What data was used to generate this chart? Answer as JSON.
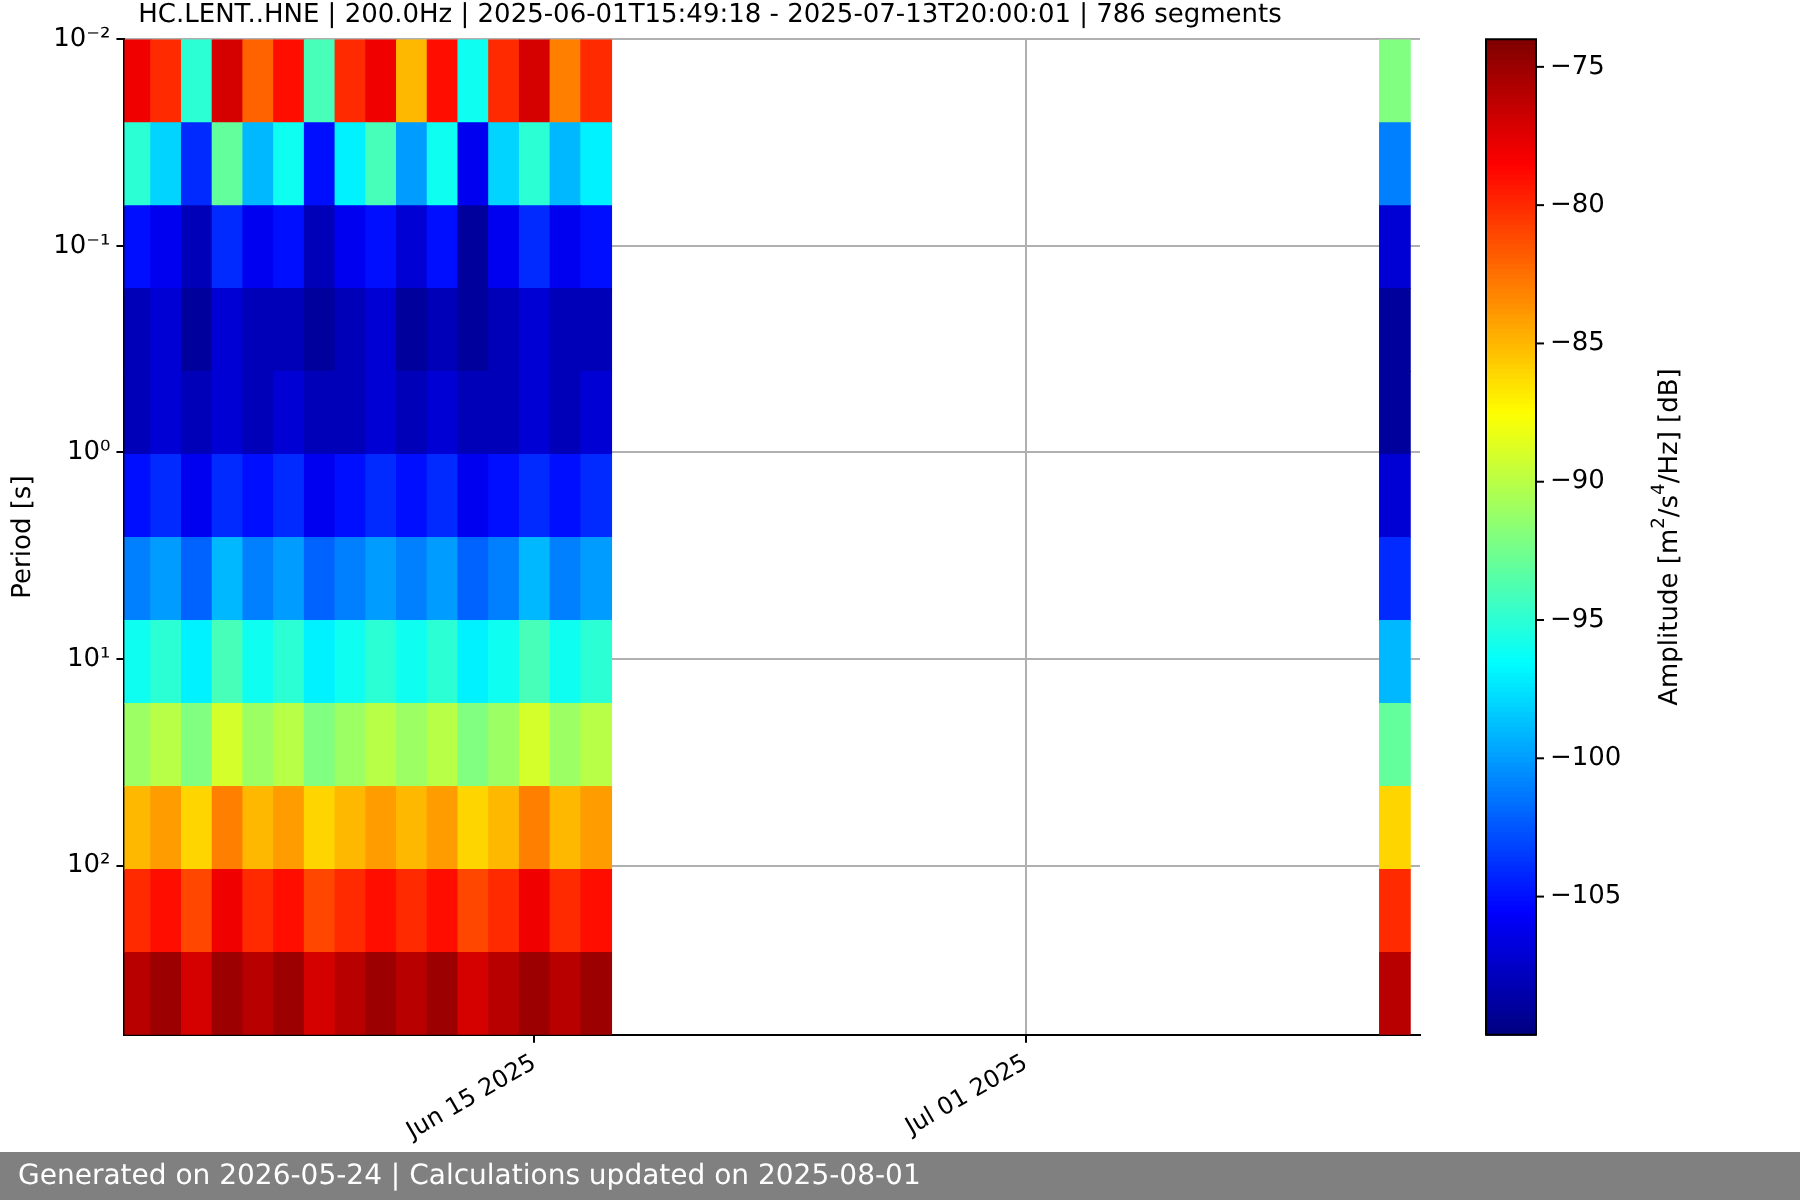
{
  "chart_data": {
    "type": "heatmap",
    "title": "HC.LENT..HNE | 200.0Hz | 2025-06-01T15:49:18 - 2025-07-13T20:00:01 | 786 segments",
    "ylabel": "Period [s]",
    "clabel": "Amplitude [m$^{2}$/s$^{4}$/Hz] [dB]",
    "annotations": [
      "Generated on 2026-05-24 | Calculations updated on 2025-08-01"
    ],
    "x": [
      "2025-06-02",
      "2025-06-03",
      "2025-06-04",
      "2025-06-05",
      "2025-06-06",
      "2025-06-07",
      "2025-06-08",
      "2025-06-09",
      "2025-06-10",
      "2025-06-11",
      "2025-06-12",
      "2025-06-13",
      "2025-06-14",
      "2025-06-15",
      "2025-06-16",
      "2025-06-17",
      "2025-06-18",
      "2025-06-19",
      "2025-06-20",
      "2025-06-21",
      "2025-06-22",
      "2025-06-23",
      "2025-06-24",
      "2025-06-25",
      "2025-06-26",
      "2025-06-27",
      "2025-06-28",
      "2025-06-29",
      "2025-06-30",
      "2025-07-01",
      "2025-07-02",
      "2025-07-03",
      "2025-07-04",
      "2025-07-05",
      "2025-07-06",
      "2025-07-07",
      "2025-07-08",
      "2025-07-09",
      "2025-07-10",
      "2025-07-11",
      "2025-07-12",
      "2025-07-13"
    ],
    "cells": [
      [
        -78,
        -80,
        -95,
        -77,
        -82,
        -79,
        -94,
        -80,
        -78,
        -85,
        -79,
        -96,
        -80,
        -77,
        -83,
        -80,
        null,
        null,
        null,
        null,
        null,
        null,
        null,
        null,
        null,
        null,
        null,
        null,
        null,
        null,
        null,
        null,
        null,
        null,
        null,
        null,
        null,
        null,
        null,
        null,
        null,
        -92
      ],
      [
        -95,
        -98,
        -104,
        -93,
        -99,
        -96,
        -105,
        -97,
        -94,
        -100,
        -96,
        -106,
        -98,
        -95,
        -99,
        -97,
        null,
        null,
        null,
        null,
        null,
        null,
        null,
        null,
        null,
        null,
        null,
        null,
        null,
        null,
        null,
        null,
        null,
        null,
        null,
        null,
        null,
        null,
        null,
        null,
        null,
        -101
      ],
      [
        -105,
        -106,
        -108,
        -104,
        -106,
        -105,
        -108,
        -106,
        -105,
        -107,
        -105,
        -109,
        -106,
        -104,
        -106,
        -105,
        null,
        null,
        null,
        null,
        null,
        null,
        null,
        null,
        null,
        null,
        null,
        null,
        null,
        null,
        null,
        null,
        null,
        null,
        null,
        null,
        null,
        null,
        null,
        null,
        null,
        -107
      ],
      [
        -108,
        -107,
        -109,
        -107,
        -108,
        -108,
        -109,
        -108,
        -107,
        -109,
        -108,
        -109,
        -108,
        -107,
        -108,
        -108,
        null,
        null,
        null,
        null,
        null,
        null,
        null,
        null,
        null,
        null,
        null,
        null,
        null,
        null,
        null,
        null,
        null,
        null,
        null,
        null,
        null,
        null,
        null,
        null,
        null,
        -109
      ],
      [
        -108,
        -107,
        -108,
        -107,
        -108,
        -107,
        -108,
        -108,
        -107,
        -108,
        -107,
        -108,
        -108,
        -107,
        -108,
        -107,
        null,
        null,
        null,
        null,
        null,
        null,
        null,
        null,
        null,
        null,
        null,
        null,
        null,
        null,
        null,
        null,
        null,
        null,
        null,
        null,
        null,
        null,
        null,
        null,
        null,
        -109
      ],
      [
        -105,
        -104,
        -106,
        -104,
        -105,
        -104,
        -106,
        -105,
        -104,
        -105,
        -104,
        -106,
        -105,
        -104,
        -105,
        -104,
        null,
        null,
        null,
        null,
        null,
        null,
        null,
        null,
        null,
        null,
        null,
        null,
        null,
        null,
        null,
        null,
        null,
        null,
        null,
        null,
        null,
        null,
        null,
        null,
        null,
        -107
      ],
      [
        -101,
        -100,
        -102,
        -99,
        -101,
        -100,
        -102,
        -101,
        -100,
        -101,
        -100,
        -102,
        -101,
        -99,
        -101,
        -100,
        null,
        null,
        null,
        null,
        null,
        null,
        null,
        null,
        null,
        null,
        null,
        null,
        null,
        null,
        null,
        null,
        null,
        null,
        null,
        null,
        null,
        null,
        null,
        null,
        null,
        -104
      ],
      [
        -96,
        -95,
        -97,
        -94,
        -96,
        -95,
        -97,
        -96,
        -95,
        -96,
        -95,
        -97,
        -96,
        -94,
        -96,
        -95,
        null,
        null,
        null,
        null,
        null,
        null,
        null,
        null,
        null,
        null,
        null,
        null,
        null,
        null,
        null,
        null,
        null,
        null,
        null,
        null,
        null,
        null,
        null,
        null,
        null,
        -99
      ],
      [
        -91,
        -90,
        -92,
        -89,
        -91,
        -90,
        -92,
        -91,
        -90,
        -91,
        -90,
        -92,
        -91,
        -89,
        -91,
        -90,
        null,
        null,
        null,
        null,
        null,
        null,
        null,
        null,
        null,
        null,
        null,
        null,
        null,
        null,
        null,
        null,
        null,
        null,
        null,
        null,
        null,
        null,
        null,
        null,
        null,
        -93
      ],
      [
        -85,
        -84,
        -86,
        -83,
        -85,
        -84,
        -86,
        -85,
        -84,
        -85,
        -84,
        -86,
        -85,
        -83,
        -85,
        -84,
        null,
        null,
        null,
        null,
        null,
        null,
        null,
        null,
        null,
        null,
        null,
        null,
        null,
        null,
        null,
        null,
        null,
        null,
        null,
        null,
        null,
        null,
        null,
        null,
        null,
        -86
      ],
      [
        -80,
        -79,
        -81,
        -78,
        -80,
        -79,
        -81,
        -80,
        -79,
        -80,
        -79,
        -81,
        -80,
        -78,
        -80,
        -79,
        null,
        null,
        null,
        null,
        null,
        null,
        null,
        null,
        null,
        null,
        null,
        null,
        null,
        null,
        null,
        null,
        null,
        null,
        null,
        null,
        null,
        null,
        null,
        null,
        null,
        -80
      ],
      [
        -76,
        -75,
        -77,
        -75,
        -76,
        -75,
        -77,
        -76,
        -75,
        -76,
        -75,
        -77,
        -76,
        -75,
        -76,
        -75,
        null,
        null,
        null,
        null,
        null,
        null,
        null,
        null,
        null,
        null,
        null,
        null,
        null,
        null,
        null,
        null,
        null,
        null,
        null,
        null,
        null,
        null,
        null,
        null,
        null,
        -76
      ]
    ],
    "clim": [
      -110,
      -74
    ],
    "cticks": [
      -105,
      -100,
      -95,
      -90,
      -85,
      -80,
      -75
    ],
    "xlim": [
      "2025-06-01T15:49",
      "2025-07-13T20:00"
    ],
    "xticks": [
      {
        "value": "2025-06-15",
        "label": "Jun 15 2025"
      },
      {
        "value": "2025-07-01",
        "label": "Jul 01 2025"
      }
    ],
    "ylim": [
      660,
      0.01
    ],
    "yticks": [
      {
        "value": 0.01,
        "label": "10⁻²"
      },
      {
        "value": 0.1,
        "label": "10⁻¹"
      },
      {
        "value": 1,
        "label": "10⁰"
      },
      {
        "value": 10,
        "label": "10¹"
      },
      {
        "value": 100,
        "label": "10²"
      }
    ],
    "log": "y",
    "grid": true
  }
}
